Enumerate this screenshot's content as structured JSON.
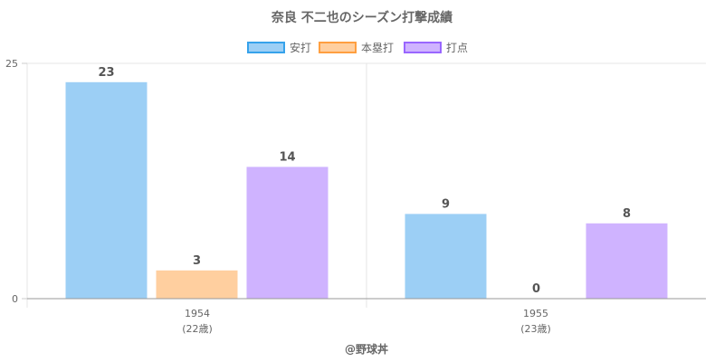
{
  "chart_data": {
    "type": "bar",
    "title": "奈良 不二也のシーズン打撃成績",
    "categories": [
      {
        "year": "1954",
        "age": "(22歳)"
      },
      {
        "year": "1955",
        "age": "(23歳)"
      }
    ],
    "series": [
      {
        "name": "安打",
        "values": [
          23,
          9
        ],
        "fill": "#9ccff5",
        "stroke": "#36a2eb"
      },
      {
        "name": "本塁打",
        "values": [
          3,
          0
        ],
        "fill": "#ffcf9f",
        "stroke": "#ff9f40"
      },
      {
        "name": "打点",
        "values": [
          14,
          8
        ],
        "fill": "#cfb3ff",
        "stroke": "#9966ff"
      }
    ],
    "y_ticks": [
      "0",
      "25"
    ],
    "ylim": [
      0,
      25
    ],
    "legend_position": "top",
    "grid": true
  },
  "footer": "@野球丼"
}
